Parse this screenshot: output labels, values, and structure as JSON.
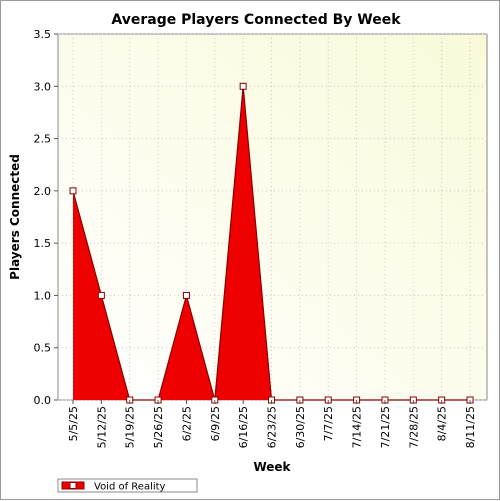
{
  "chart_data": {
    "type": "area",
    "title": "Average Players Connected By Week",
    "xlabel": "Week",
    "ylabel": "Players Connected",
    "categories": [
      "5/5/25",
      "5/12/25",
      "5/19/25",
      "5/26/25",
      "6/2/25",
      "6/9/25",
      "6/16/25",
      "6/23/25",
      "6/30/25",
      "7/7/25",
      "7/14/25",
      "7/21/25",
      "7/28/25",
      "8/4/25",
      "8/11/25"
    ],
    "series": [
      {
        "name": "Void of Reality",
        "values": [
          2.0,
          1.0,
          0,
          0,
          1.0,
          0,
          3.0,
          0,
          0,
          0,
          0,
          0,
          0,
          0,
          0
        ]
      }
    ],
    "ylim": [
      0,
      3.5
    ],
    "yticks": [
      "0.0",
      "0.5",
      "1.0",
      "1.5",
      "2.0",
      "2.5",
      "3.0",
      "3.5"
    ],
    "grid": true,
    "legend_position": "bottom-left",
    "colors": {
      "series_fill": "#ee0000",
      "series_line": "#8b0000",
      "plot_bg_start": "#fafada",
      "plot_bg_end": "#ffffff"
    }
  }
}
